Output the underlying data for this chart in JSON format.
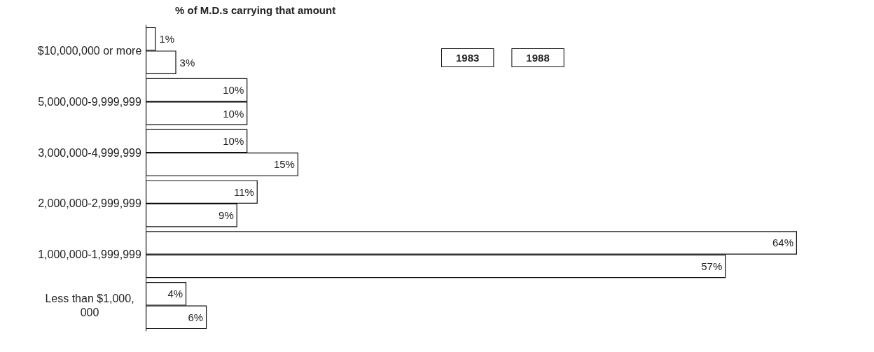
{
  "chart_data": {
    "type": "bar",
    "orientation": "horizontal",
    "title": "% of M.D.s carrying that amount",
    "categories": [
      "$10,000,000 or more",
      "5,000,000-9,999,999",
      "3,000,000-4,999,999",
      "2,000,000-2,999,999",
      "1,000,000-1,999,999",
      "Less than $1,000,000"
    ],
    "series": [
      {
        "name": "1983",
        "color": "#ffffff",
        "values": [
          1,
          10,
          10,
          11,
          64,
          4
        ],
        "value_labels": [
          "1%",
          "10%",
          "10%",
          "11%",
          "64%",
          "4%"
        ]
      },
      {
        "name": "1988",
        "color": "#ffffff",
        "values": [
          3,
          10,
          15,
          9,
          57,
          6
        ],
        "value_labels": [
          "3%",
          "10%",
          "15%",
          "9%",
          "57%",
          "6%"
        ]
      }
    ],
    "legend": "top right",
    "grid": false
  }
}
